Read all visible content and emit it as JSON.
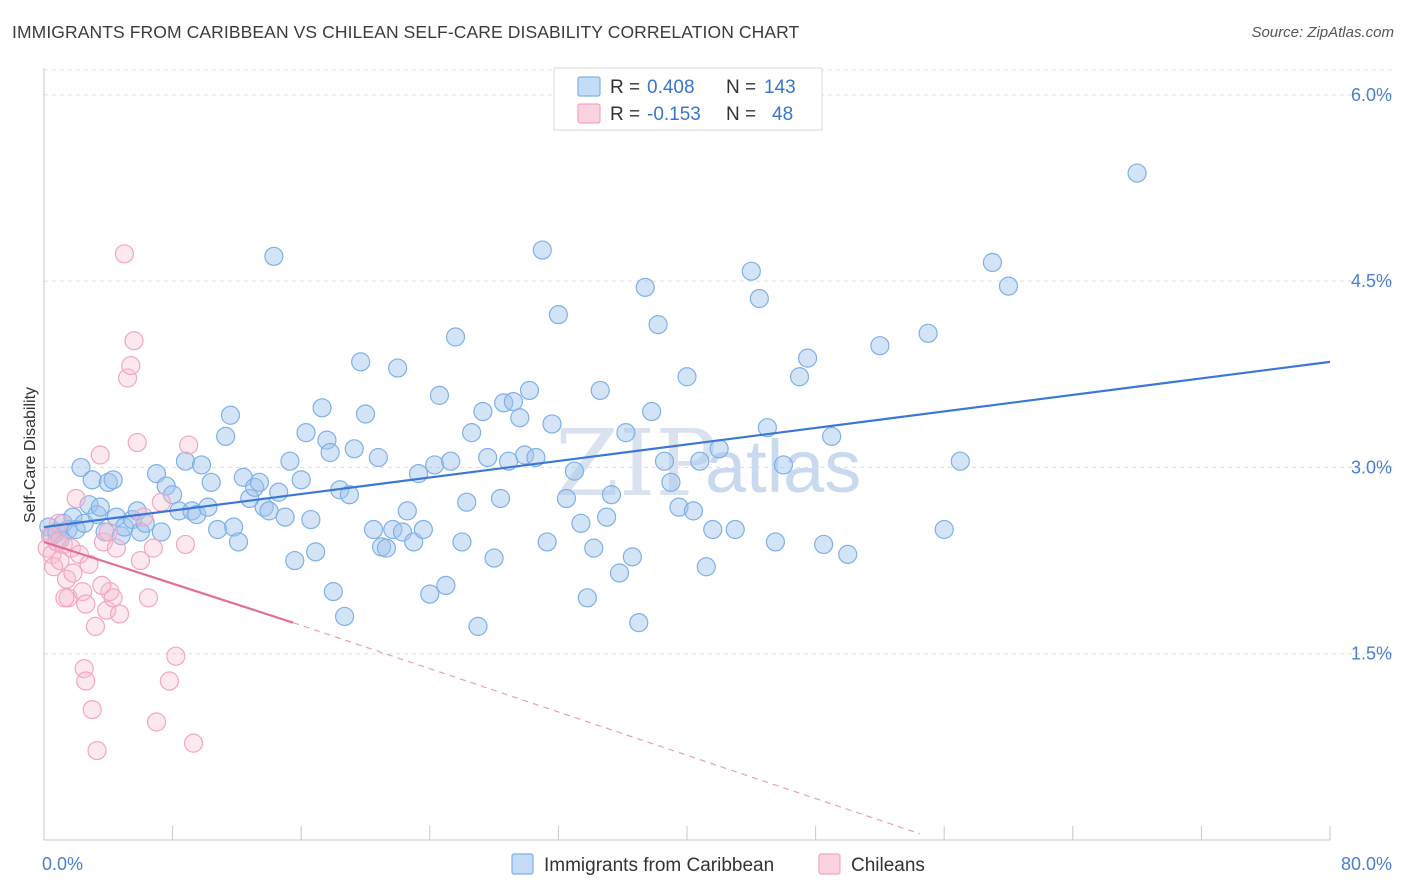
{
  "title": "IMMIGRANTS FROM CARIBBEAN VS CHILEAN SELF-CARE DISABILITY CORRELATION CHART",
  "source": "Source: ZipAtlas.com",
  "watermark": {
    "zip": "ZIP",
    "atlas": "atlas"
  },
  "legend": {
    "rows": [
      {
        "r_label": "R =",
        "r_value": "0.408",
        "n_label": "N =",
        "n_value": "143",
        "color": "#7fb0e8"
      },
      {
        "r_label": "R =",
        "r_value": "-0.153",
        "n_label": "N =",
        "n_value": "48",
        "color": "#f4a6c0"
      }
    ]
  },
  "chart_data": {
    "type": "scatter",
    "title": "IMMIGRANTS FROM CARIBBEAN VS CHILEAN SELF-CARE DISABILITY CORRELATION CHART",
    "xlabel": "",
    "ylabel": "Self-Care Disability",
    "xlim": [
      0,
      80
    ],
    "ylim": [
      0,
      6.2
    ],
    "x_tick_labels": [
      "0.0%",
      "80.0%"
    ],
    "y_ticks": [
      1.5,
      3.0,
      4.5,
      6.0
    ],
    "y_tick_labels": [
      "1.5%",
      "3.0%",
      "4.5%",
      "6.0%"
    ],
    "grid": "horizontal dashed",
    "legend_position": "top-center",
    "series": [
      {
        "name": "Immigrants from Caribbean",
        "color": "#7fb0e8",
        "trend": {
          "x": [
            0,
            80
          ],
          "y": [
            2.52,
            3.85
          ],
          "style": "solid"
        },
        "points": [
          [
            0.3,
            2.52
          ],
          [
            0.5,
            2.45
          ],
          [
            0.8,
            2.48
          ],
          [
            1.0,
            2.42
          ],
          [
            1.2,
            2.55
          ],
          [
            1.5,
            2.5
          ],
          [
            1.8,
            2.6
          ],
          [
            2.0,
            2.5
          ],
          [
            2.3,
            3.0
          ],
          [
            2.5,
            2.55
          ],
          [
            2.8,
            2.7
          ],
          [
            3.0,
            2.9
          ],
          [
            3.3,
            2.62
          ],
          [
            3.5,
            2.68
          ],
          [
            3.8,
            2.48
          ],
          [
            4.0,
            2.88
          ],
          [
            4.3,
            2.9
          ],
          [
            4.5,
            2.6
          ],
          [
            4.8,
            2.45
          ],
          [
            5.0,
            2.52
          ],
          [
            5.5,
            2.58
          ],
          [
            5.8,
            2.65
          ],
          [
            6.0,
            2.48
          ],
          [
            6.3,
            2.55
          ],
          [
            7.0,
            2.95
          ],
          [
            7.3,
            2.48
          ],
          [
            7.6,
            2.85
          ],
          [
            8.0,
            2.78
          ],
          [
            8.4,
            2.65
          ],
          [
            8.8,
            3.05
          ],
          [
            9.2,
            2.65
          ],
          [
            9.5,
            2.62
          ],
          [
            9.8,
            3.02
          ],
          [
            10.2,
            2.68
          ],
          [
            10.4,
            2.88
          ],
          [
            10.8,
            2.5
          ],
          [
            11.3,
            3.25
          ],
          [
            11.6,
            3.42
          ],
          [
            11.8,
            2.52
          ],
          [
            12.1,
            2.4
          ],
          [
            12.4,
            2.92
          ],
          [
            12.8,
            2.75
          ],
          [
            13.1,
            2.84
          ],
          [
            13.4,
            2.88
          ],
          [
            13.7,
            2.68
          ],
          [
            14.0,
            2.65
          ],
          [
            14.3,
            4.7
          ],
          [
            14.6,
            2.8
          ],
          [
            15.0,
            2.6
          ],
          [
            15.3,
            3.05
          ],
          [
            15.6,
            2.25
          ],
          [
            16.0,
            2.9
          ],
          [
            16.3,
            3.28
          ],
          [
            16.6,
            2.58
          ],
          [
            16.9,
            2.32
          ],
          [
            17.3,
            3.48
          ],
          [
            17.6,
            3.22
          ],
          [
            17.8,
            3.12
          ],
          [
            18.0,
            2.0
          ],
          [
            18.4,
            2.82
          ],
          [
            18.7,
            1.8
          ],
          [
            19.0,
            2.78
          ],
          [
            19.3,
            3.15
          ],
          [
            19.7,
            3.85
          ],
          [
            20.0,
            3.43
          ],
          [
            20.5,
            2.5
          ],
          [
            20.8,
            3.08
          ],
          [
            21.0,
            2.36
          ],
          [
            21.3,
            2.35
          ],
          [
            21.7,
            2.5
          ],
          [
            22.0,
            3.8
          ],
          [
            22.3,
            2.48
          ],
          [
            22.6,
            2.65
          ],
          [
            23.0,
            2.4
          ],
          [
            23.3,
            2.95
          ],
          [
            23.6,
            2.5
          ],
          [
            24.0,
            1.98
          ],
          [
            24.3,
            3.02
          ],
          [
            24.6,
            3.58
          ],
          [
            25.0,
            2.05
          ],
          [
            25.3,
            3.05
          ],
          [
            25.6,
            4.05
          ],
          [
            26.0,
            2.4
          ],
          [
            26.3,
            2.72
          ],
          [
            26.6,
            3.28
          ],
          [
            27.0,
            1.72
          ],
          [
            27.3,
            3.45
          ],
          [
            27.6,
            3.08
          ],
          [
            28.0,
            2.27
          ],
          [
            28.4,
            2.75
          ],
          [
            28.6,
            3.52
          ],
          [
            28.9,
            3.05
          ],
          [
            29.2,
            3.53
          ],
          [
            29.6,
            3.4
          ],
          [
            29.9,
            3.1
          ],
          [
            30.2,
            3.62
          ],
          [
            30.6,
            3.08
          ],
          [
            31.0,
            4.75
          ],
          [
            31.3,
            2.4
          ],
          [
            31.6,
            3.35
          ],
          [
            32.0,
            4.23
          ],
          [
            32.5,
            2.75
          ],
          [
            33.0,
            2.97
          ],
          [
            33.4,
            2.55
          ],
          [
            33.8,
            1.95
          ],
          [
            34.2,
            2.35
          ],
          [
            34.6,
            3.62
          ],
          [
            35.0,
            2.6
          ],
          [
            35.3,
            2.78
          ],
          [
            35.8,
            2.15
          ],
          [
            36.2,
            3.28
          ],
          [
            36.6,
            2.28
          ],
          [
            37.0,
            1.75
          ],
          [
            37.4,
            4.45
          ],
          [
            37.8,
            3.45
          ],
          [
            38.2,
            4.15
          ],
          [
            38.6,
            3.05
          ],
          [
            39.0,
            2.88
          ],
          [
            39.5,
            2.68
          ],
          [
            40.0,
            3.73
          ],
          [
            40.4,
            2.65
          ],
          [
            40.8,
            3.05
          ],
          [
            41.2,
            2.2
          ],
          [
            41.6,
            2.5
          ],
          [
            42.0,
            3.15
          ],
          [
            43.0,
            2.5
          ],
          [
            44.0,
            4.58
          ],
          [
            44.5,
            4.36
          ],
          [
            45.0,
            3.32
          ],
          [
            45.5,
            2.4
          ],
          [
            46.0,
            3.02
          ],
          [
            47.0,
            3.73
          ],
          [
            47.5,
            3.88
          ],
          [
            48.5,
            2.38
          ],
          [
            49.0,
            3.25
          ],
          [
            50.0,
            2.3
          ],
          [
            52.0,
            3.98
          ],
          [
            55.0,
            4.08
          ],
          [
            56.0,
            2.5
          ],
          [
            57.0,
            3.05
          ],
          [
            59.0,
            4.65
          ],
          [
            60.0,
            4.46
          ],
          [
            68.0,
            5.37
          ]
        ]
      },
      {
        "name": "Chileans",
        "color": "#f4a6c0",
        "trend": {
          "x": [
            0,
            15.5
          ],
          "y": [
            2.4,
            1.75
          ],
          "style": "solid"
        },
        "trend_extension": {
          "x": [
            15.5,
            54.5
          ],
          "y": [
            1.75,
            0.05
          ],
          "style": "dashed"
        },
        "points": [
          [
            0.2,
            2.35
          ],
          [
            0.4,
            2.45
          ],
          [
            0.5,
            2.3
          ],
          [
            0.6,
            2.2
          ],
          [
            0.8,
            2.4
          ],
          [
            1.0,
            2.25
          ],
          [
            1.2,
            2.38
          ],
          [
            1.4,
            2.1
          ],
          [
            1.5,
            1.95
          ],
          [
            1.7,
            2.35
          ],
          [
            1.8,
            2.15
          ],
          [
            2.0,
            2.75
          ],
          [
            2.2,
            2.3
          ],
          [
            2.4,
            2.0
          ],
          [
            2.5,
            1.38
          ],
          [
            2.6,
            1.28
          ],
          [
            2.8,
            2.22
          ],
          [
            3.0,
            1.05
          ],
          [
            3.2,
            1.72
          ],
          [
            3.3,
            0.72
          ],
          [
            3.5,
            3.1
          ],
          [
            3.7,
            2.4
          ],
          [
            3.9,
            1.85
          ],
          [
            4.1,
            2.0
          ],
          [
            4.3,
            1.95
          ],
          [
            4.5,
            2.35
          ],
          [
            4.7,
            1.82
          ],
          [
            5.0,
            4.72
          ],
          [
            5.2,
            3.72
          ],
          [
            5.4,
            3.82
          ],
          [
            5.6,
            4.02
          ],
          [
            5.8,
            3.2
          ],
          [
            6.0,
            2.25
          ],
          [
            6.2,
            2.6
          ],
          [
            6.5,
            1.95
          ],
          [
            6.8,
            2.35
          ],
          [
            7.0,
            0.95
          ],
          [
            7.3,
            2.72
          ],
          [
            7.8,
            1.28
          ],
          [
            8.2,
            1.48
          ],
          [
            8.8,
            2.38
          ],
          [
            9.0,
            3.18
          ],
          [
            9.3,
            0.78
          ],
          [
            2.6,
            1.9
          ],
          [
            1.3,
            1.95
          ],
          [
            4.0,
            2.48
          ],
          [
            0.9,
            2.55
          ],
          [
            3.6,
            2.05
          ]
        ]
      }
    ]
  },
  "bottom_legend": [
    {
      "label": "Immigrants from Caribbean",
      "color": "#7fb0e8"
    },
    {
      "label": "Chileans",
      "color": "#f4a6c0"
    }
  ]
}
